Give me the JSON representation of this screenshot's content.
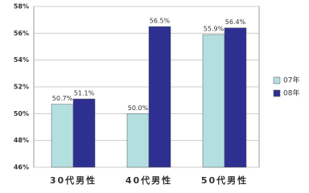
{
  "chart_data": {
    "type": "bar",
    "categories": [
      "30代男性",
      "40代男性",
      "50代男性"
    ],
    "series": [
      {
        "name": "07年",
        "color": "#b4dfe0",
        "values": [
          50.7,
          50.0,
          55.9
        ],
        "value_labels": [
          "50.7%",
          "50.0%",
          "55.9%"
        ]
      },
      {
        "name": "08年",
        "color": "#2e3091",
        "values": [
          51.1,
          56.5,
          56.4
        ],
        "value_labels": [
          "51.1%",
          "56.5%",
          "56.4%"
        ]
      }
    ],
    "ylim": [
      46,
      58
    ],
    "yticks": [
      {
        "value": 46,
        "label": "46%"
      },
      {
        "value": 48,
        "label": "48%"
      },
      {
        "value": 50,
        "label": "50%"
      },
      {
        "value": 52,
        "label": "52%"
      },
      {
        "value": 54,
        "label": "54%"
      },
      {
        "value": 56,
        "label": "56%"
      },
      {
        "value": 58,
        "label": "58%"
      }
    ],
    "grid": true,
    "legend": "right"
  }
}
